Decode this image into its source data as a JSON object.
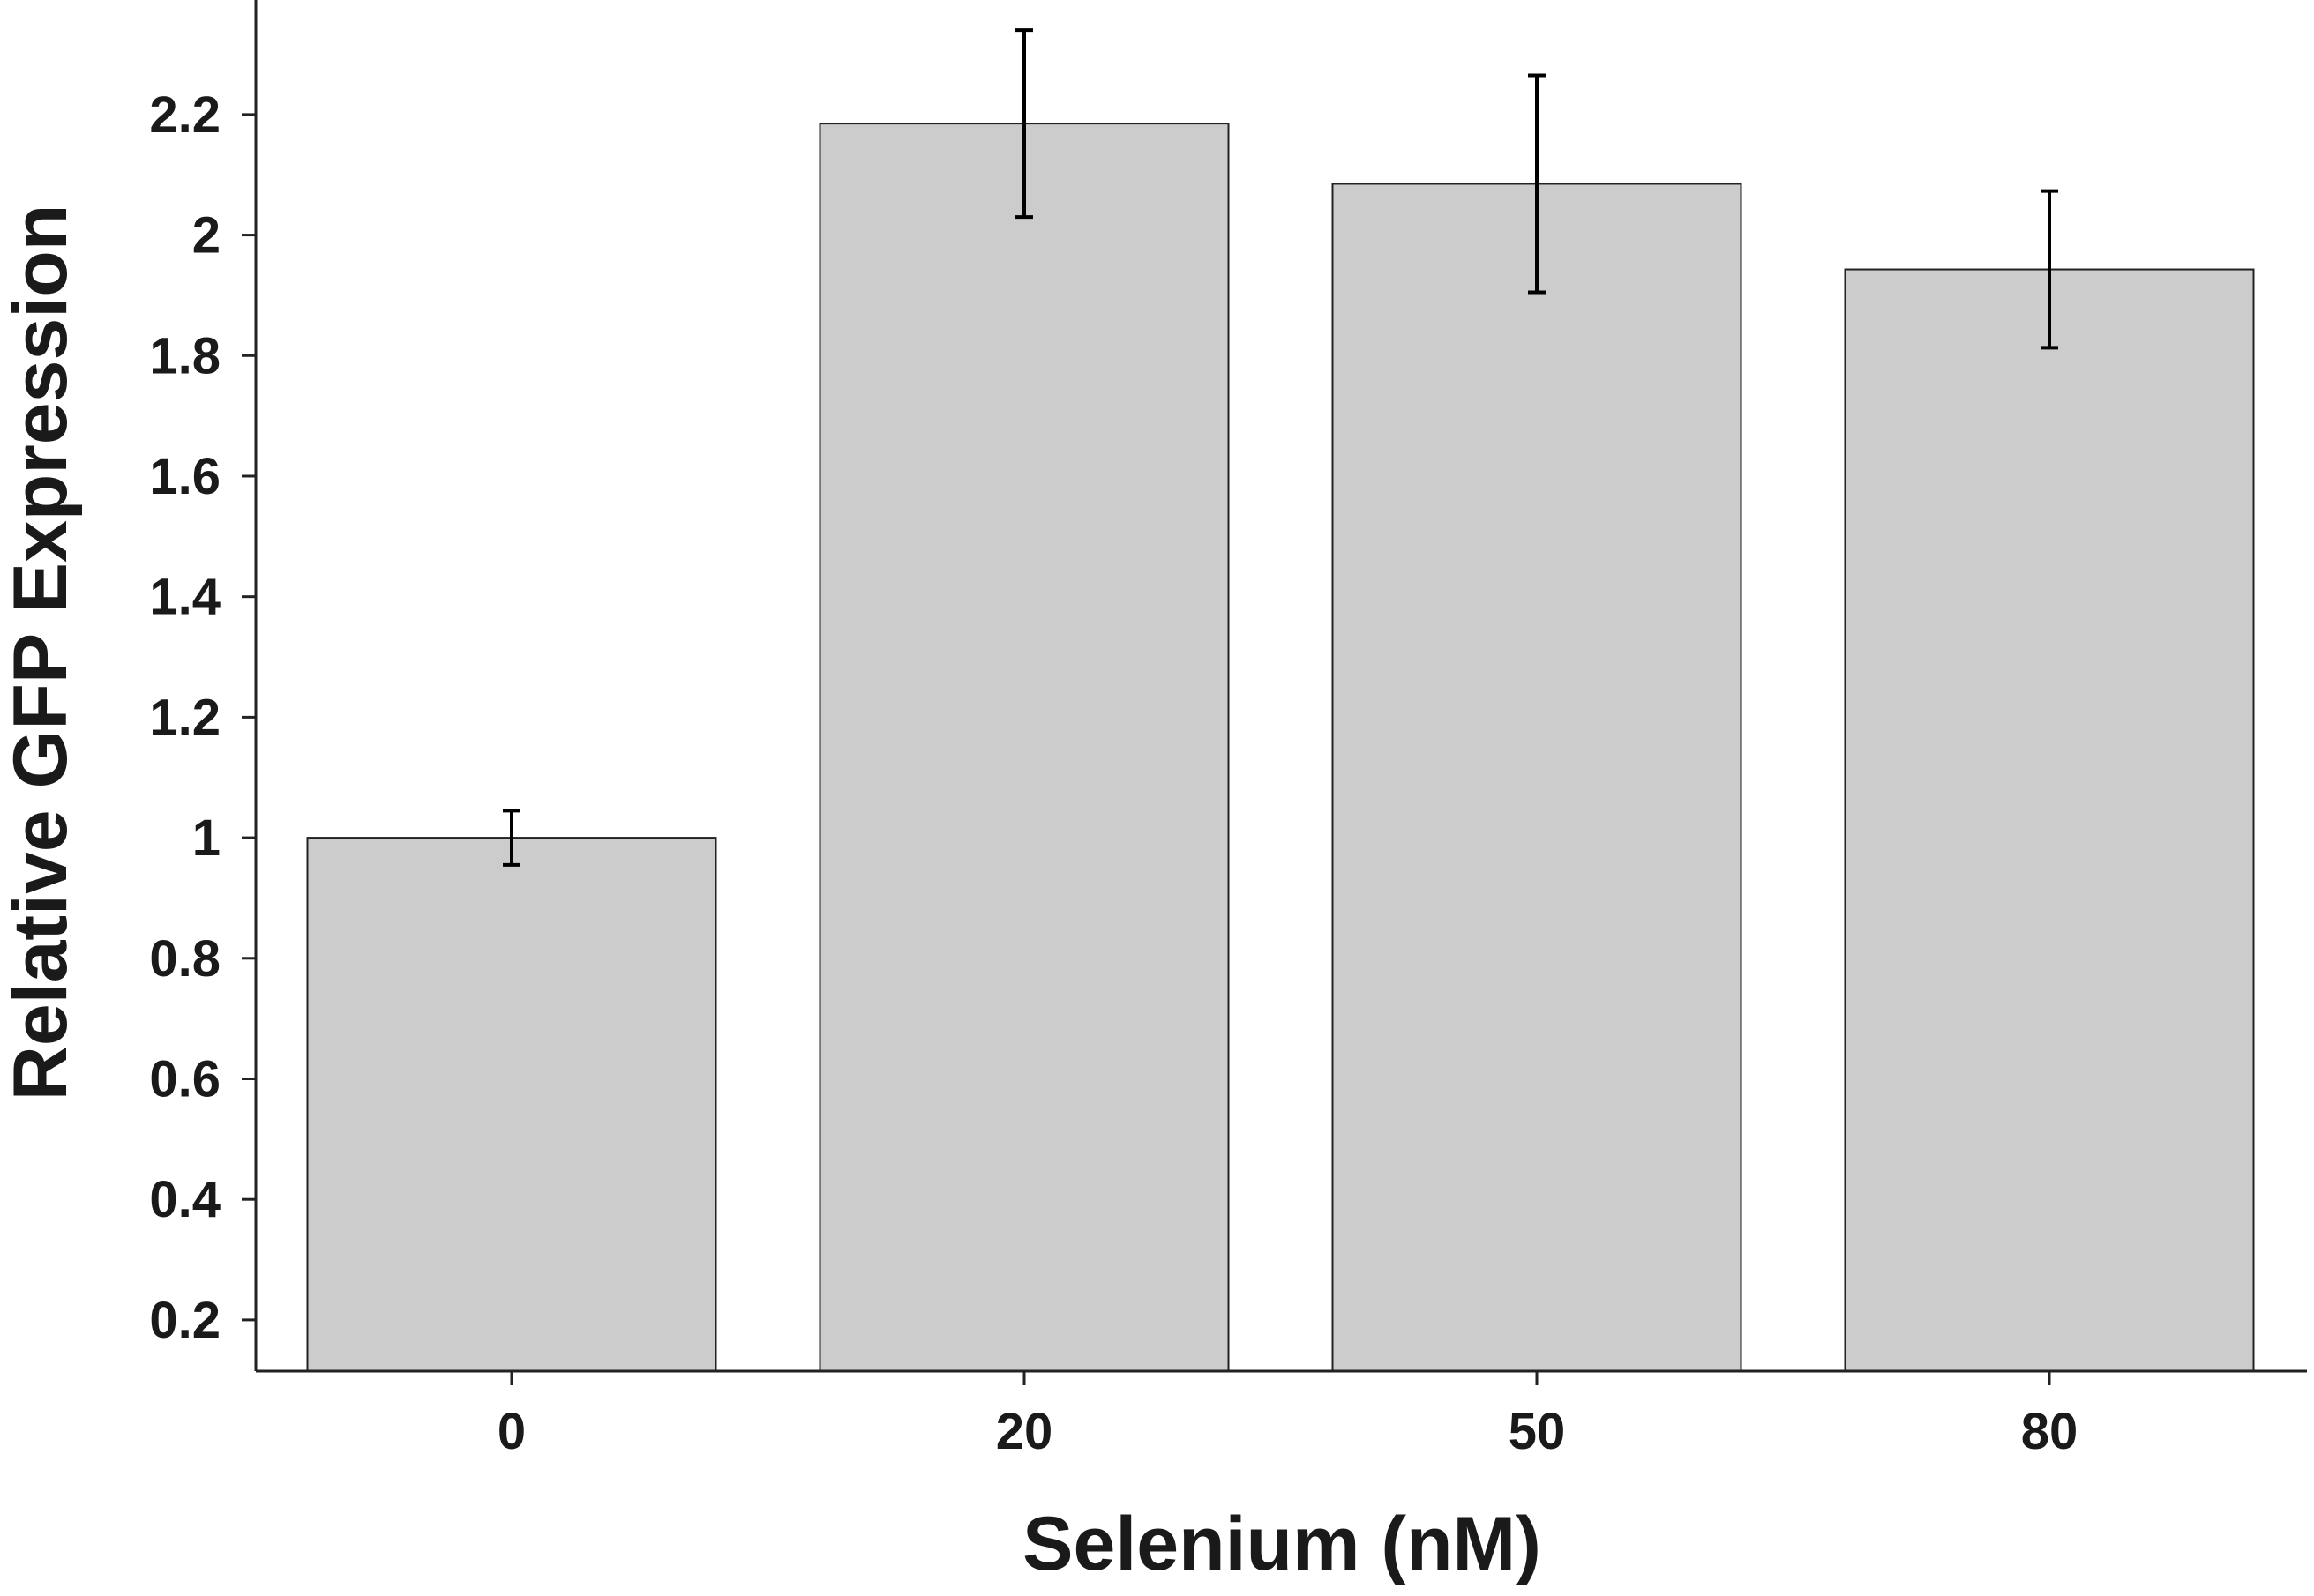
{
  "chart_data": {
    "type": "bar",
    "title": "",
    "xlabel": "Selenium (nM)",
    "ylabel": "Relative GFP Expression",
    "categories": [
      "0",
      "20",
      "50",
      "80"
    ],
    "values": [
      1.0,
      2.185,
      2.085,
      1.943
    ],
    "errors": [
      0.045,
      0.155,
      0.18,
      0.13
    ],
    "ylim": [
      0.115,
      2.39
    ],
    "yticks": [
      0.2,
      0.4,
      0.6,
      0.8,
      1,
      1.2,
      1.4,
      1.6,
      1.8,
      2,
      2.2
    ],
    "ytick_labels": [
      "0.2",
      "0.4",
      "0.6",
      "0.8",
      "1",
      "1.2",
      "1.4",
      "1.6",
      "1.8",
      "2",
      "2.2"
    ],
    "grid": false,
    "legend": "none",
    "bar_color": "#cccccc",
    "bar_edge_color": "#222222",
    "axis_color": "#222222",
    "text_color": "#1a1a1a"
  }
}
